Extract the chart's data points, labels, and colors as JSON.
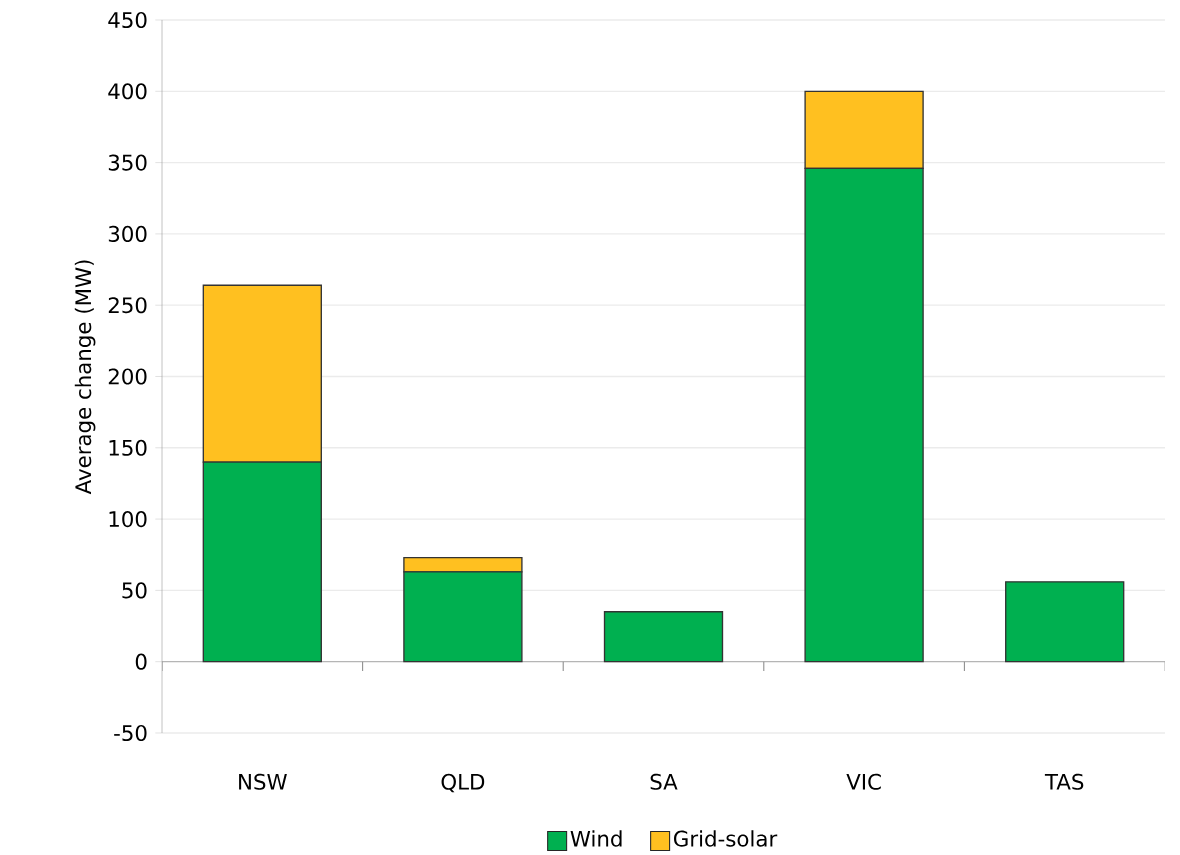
{
  "chart_data": {
    "type": "bar",
    "stacked": true,
    "categories": [
      "NSW",
      "QLD",
      "SA",
      "VIC",
      "TAS"
    ],
    "series": [
      {
        "name": "Wind",
        "color": "#00b050",
        "values": [
          140,
          63,
          35,
          346,
          56
        ]
      },
      {
        "name": "Grid-solar",
        "color": "#ffc020",
        "values": [
          124,
          10,
          0,
          54,
          0
        ]
      }
    ],
    "ylabel": "Average change (MW)",
    "ylim": [
      -50,
      450
    ],
    "yticks": [
      -50,
      0,
      50,
      100,
      150,
      200,
      250,
      300,
      350,
      400,
      450
    ],
    "grid": "y",
    "legend": "bottom"
  }
}
